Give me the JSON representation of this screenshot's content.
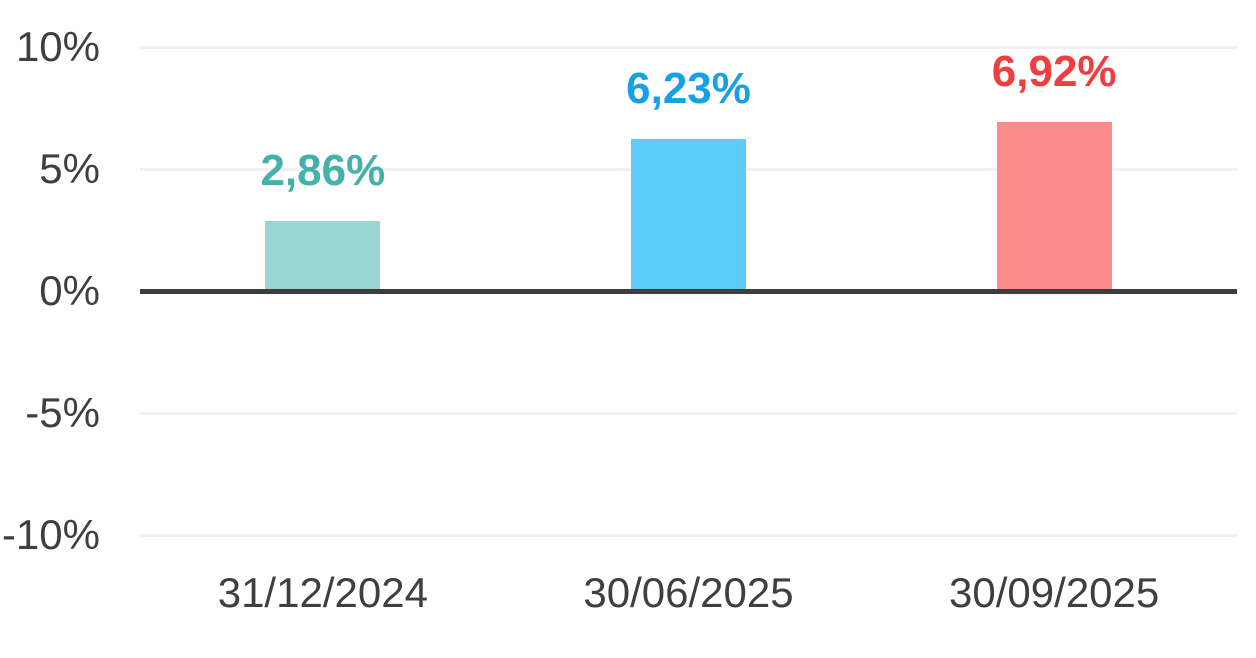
{
  "chart_data": {
    "type": "bar",
    "title": "",
    "xlabel": "",
    "ylabel": "",
    "categories": [
      "31/12/2024",
      "30/06/2025",
      "30/09/2025"
    ],
    "values": [
      2.86,
      6.23,
      6.92
    ],
    "value_labels": [
      "2,86%",
      "6,23%",
      "6,92%"
    ],
    "bar_colors": [
      "#98D6D1",
      "#5BCDF8",
      "#FD8B89"
    ],
    "value_label_colors": [
      "#45B1AB",
      "#18A0E6",
      "#EE3E40"
    ],
    "y_ticks": [
      10,
      5,
      0,
      -5,
      -10
    ],
    "y_tick_labels": [
      "10%",
      "5%",
      "0%",
      "-5%",
      "-10%"
    ],
    "ylim": [
      -10,
      10
    ],
    "grid": true,
    "legend": false,
    "colors": {
      "background": "#FFFFFF",
      "gridline": "#F1F1F1",
      "zero_line": "#3D3D3D",
      "tick_text": "#3F3F3F"
    }
  }
}
